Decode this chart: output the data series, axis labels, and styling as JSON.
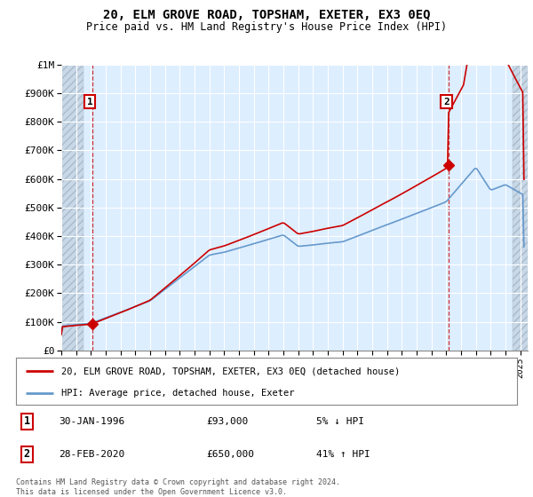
{
  "title": "20, ELM GROVE ROAD, TOPSHAM, EXETER, EX3 0EQ",
  "subtitle": "Price paid vs. HM Land Registry's House Price Index (HPI)",
  "legend_line1": "20, ELM GROVE ROAD, TOPSHAM, EXETER, EX3 0EQ (detached house)",
  "legend_line2": "HPI: Average price, detached house, Exeter",
  "sale1_date": "30-JAN-1996",
  "sale1_price": "£93,000",
  "sale1_hpi": "5% ↓ HPI",
  "sale2_date": "28-FEB-2020",
  "sale2_price": "£650,000",
  "sale2_hpi": "41% ↑ HPI",
  "copyright": "Contains HM Land Registry data © Crown copyright and database right 2024.\nThis data is licensed under the Open Government Licence v3.0.",
  "price_line_color": "#cc0000",
  "hpi_line_color": "#6699cc",
  "plot_bg_color": "#ddeeff",
  "hatch_color": "#c8d8e8",
  "grid_color": "#ffffff",
  "ylim": [
    0,
    1000000
  ],
  "xlim_start": 1994.0,
  "xlim_end": 2025.5,
  "sale1_x": 1996.08,
  "sale1_y": 93000,
  "sale2_x": 2020.16,
  "sale2_y": 650000
}
